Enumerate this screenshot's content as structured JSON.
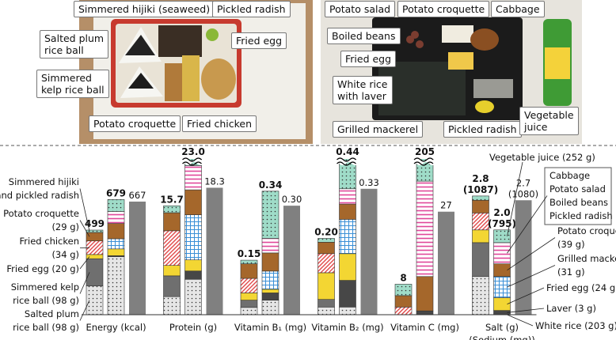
{
  "photo_left": {
    "labels": [
      "Simmered hijiki (seaweed)",
      "Pickled radish",
      "Salted plum\nrice ball",
      "Fried egg",
      "Simmered\nkelp rice ball",
      "Potato croquette",
      "Fried chicken"
    ]
  },
  "photo_right": {
    "labels": [
      "Potato salad",
      "Potato croquette",
      "Cabbage",
      "Boiled beans",
      "Fried egg",
      "White rice\nwith laver",
      "Grilled mackerel",
      "Pickled radish",
      "Vegetable\njuice"
    ]
  },
  "chart_data": {
    "type": "bar",
    "stacked": true,
    "categories": [
      "Energy (kcal)",
      "Protein (g)",
      "Vitamin B₁ (mg)",
      "Vitamin B₂ (mg)",
      "Vitamin C (mg)",
      "Salt (g)\n(Sodium (mg))"
    ],
    "ylims": [
      [
        0,
        900
      ],
      [
        0,
        22
      ],
      [
        0,
        0.42
      ],
      [
        0,
        0.4
      ],
      [
        0,
        40
      ],
      [
        0,
        3.6
      ]
    ],
    "lunch_a": {
      "series": [
        {
          "name": "Salted plum\nrice ball (98 g)",
          "color": "#e6e6e6",
          "pattern": "dots",
          "values": [
            170,
            2.6,
            0.02,
            0.02,
            0,
            0.9
          ]
        },
        {
          "name": "Simmered kelp\nrice ball (98 g)",
          "color": "#6f6f6f",
          "pattern": "solid",
          "values": [
            160,
            3.0,
            0.02,
            0.02,
            0,
            0.8
          ]
        },
        {
          "name": "Fried egg (20 g)",
          "color": "#f3d633",
          "pattern": "solid",
          "values": [
            25,
            1.5,
            0.02,
            0.07,
            0,
            0.3
          ]
        },
        {
          "name": "Fried chicken\n(34 g)",
          "color": "#e04848",
          "pattern": "hatch",
          "values": [
            80,
            5.0,
            0.04,
            0.05,
            2,
            0.4
          ]
        },
        {
          "name": "Potato croquette\n(29 g)",
          "color": "#a5672b",
          "pattern": "solid",
          "values": [
            50,
            2.6,
            0.04,
            0.03,
            3,
            0.3
          ]
        },
        {
          "name": "Simmered hijiki\nand pickled radish",
          "color": "#9fdcc8",
          "pattern": "dots",
          "values": [
            14,
            1.0,
            0.01,
            0.01,
            3,
            0.1
          ]
        }
      ],
      "totals": {
        "values": [
          499,
          15.7,
          0.15,
          0.2,
          8,
          2.8
        ],
        "value_labels": [
          "499",
          "15.7",
          "0.15",
          "0.20",
          "8",
          "2.8\n(1087)"
        ]
      }
    },
    "lunch_b": {
      "series": [
        {
          "name": "White rice (203 g)",
          "color": "#e6e6e6",
          "pattern": "dots",
          "values": [
            342,
            5.1,
            0.04,
            0.02,
            0,
            0
          ]
        },
        {
          "name": "Laver (3 g)",
          "color": "#474747",
          "pattern": "solid",
          "values": [
            6,
            1.2,
            0.02,
            0.07,
            1,
            0.1
          ]
        },
        {
          "name": "Fried egg (24 g)",
          "color": "#f3d633",
          "pattern": "solid",
          "values": [
            40,
            1.6,
            0.01,
            0.07,
            0,
            0.3
          ]
        },
        {
          "name": "Grilled mackerel\n(31 g)",
          "color": "#3a8fd6",
          "pattern": "grid",
          "values": [
            60,
            6.5,
            0.05,
            0.09,
            0,
            0.5
          ]
        },
        {
          "name": "Potato croquette\n(39 g)",
          "color": "#a5672b",
          "pattern": "solid",
          "values": [
            90,
            3.6,
            0.05,
            0.04,
            9,
            0.3
          ]
        },
        {
          "name": "Cabbage\nPotato salad\nBoiled beans\nPickled radish",
          "color": "#e0479a",
          "pattern": "stripes",
          "values": [
            71,
            3.5,
            0.04,
            0.04,
            25,
            0.5
          ]
        },
        {
          "name": "Vegetable juice  (252 g)",
          "color": "#9fdcc8",
          "pattern": "dots",
          "values": [
            70,
            1.5,
            0.13,
            0.11,
            170,
            0.3
          ]
        }
      ],
      "totals": {
        "values": [
          679,
          23.0,
          0.34,
          0.44,
          205,
          2.0
        ],
        "value_labels": [
          "679",
          "23.0",
          "0.34",
          "0.44",
          "205",
          "2.0\n(795)"
        ]
      }
    },
    "reference": {
      "color": "#808080",
      "values": [
        667,
        18.3,
        0.3,
        0.33,
        27,
        2.7
      ],
      "value_labels": [
        "667",
        "18.3",
        "0.30",
        "0.33",
        "27",
        "2.7\n(1080)"
      ]
    }
  }
}
